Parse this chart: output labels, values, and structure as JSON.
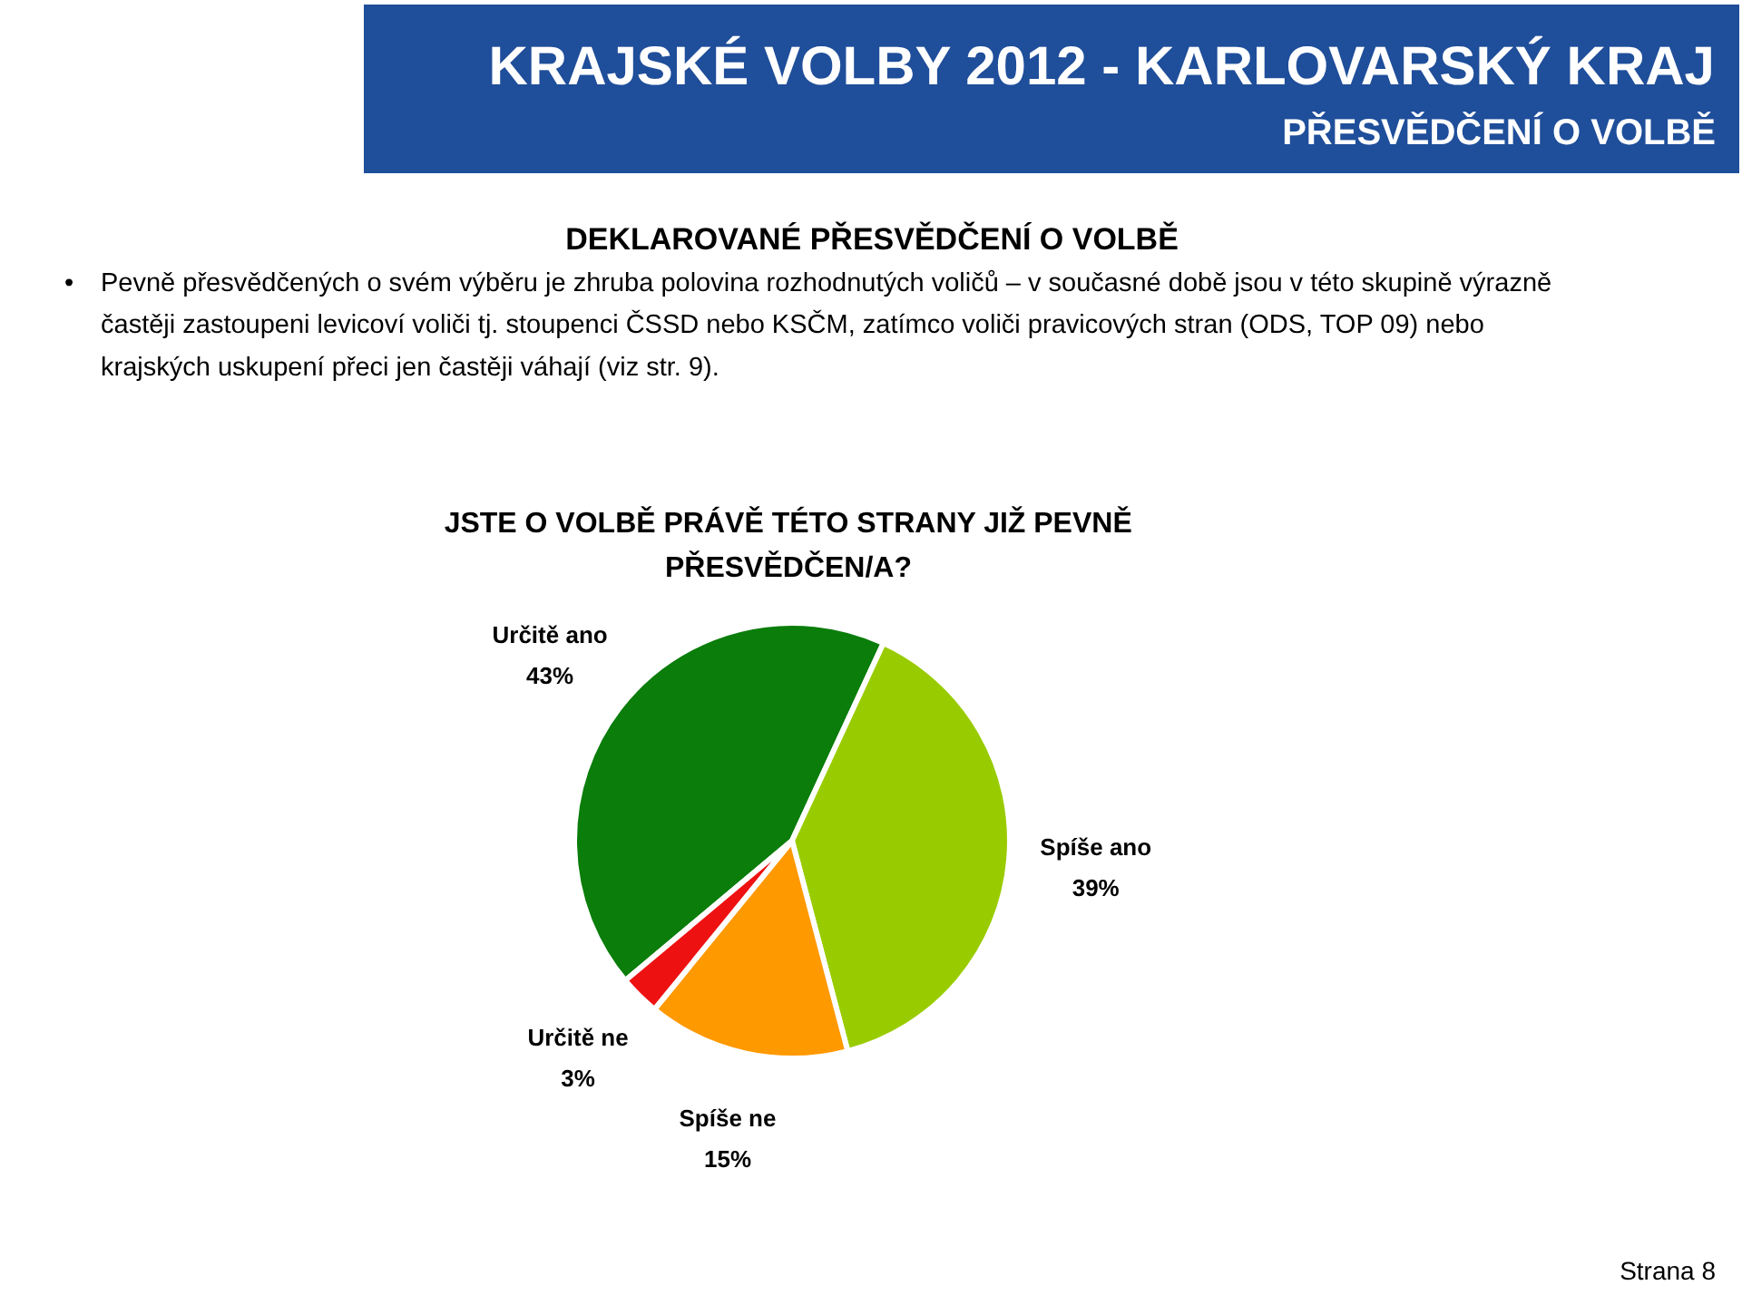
{
  "chart_data": {
    "type": "pie",
    "title": "KRAJSKÉ VOLBY 2012 - KARLOVARSKÝ KRAJ",
    "subtitle": "PŘESVĚDČENÍ O VOLBĚ",
    "annotations": [
      "DEKLAROVANÉ PŘESVĚDČENÍ O VOLBĚ",
      "•",
      "Pevně přesvědčených o svém výběru je zhruba polovina rozhodnutých voličů – v současné době jsou v této skupině výrazně\nčastěji zastoupeni levicoví voliči tj. stoupenci ČSSD nebo KSČM, zatímco voliči pravicových stran (ODS, TOP 09) nebo\nkrajských uskupení přeci jen častěji váhají (viz str. 9).",
      "JSTE O VOLBĚ PRÁVĚ TÉTO STRANY JIŽ PEVNĚ\nPŘESVĚDČEN/A?",
      "Strana 8"
    ],
    "categories": [
      "Určitě ano",
      "Spíše ano",
      "Spíše ne",
      "Určitě ne"
    ],
    "values": [
      43,
      39,
      15,
      3
    ],
    "colors": [
      "#0a7d0a",
      "#99cc00",
      "#ff9900",
      "#ee1111"
    ],
    "value_labels": [
      "43%",
      "39%",
      "15%",
      "3%"
    ]
  }
}
